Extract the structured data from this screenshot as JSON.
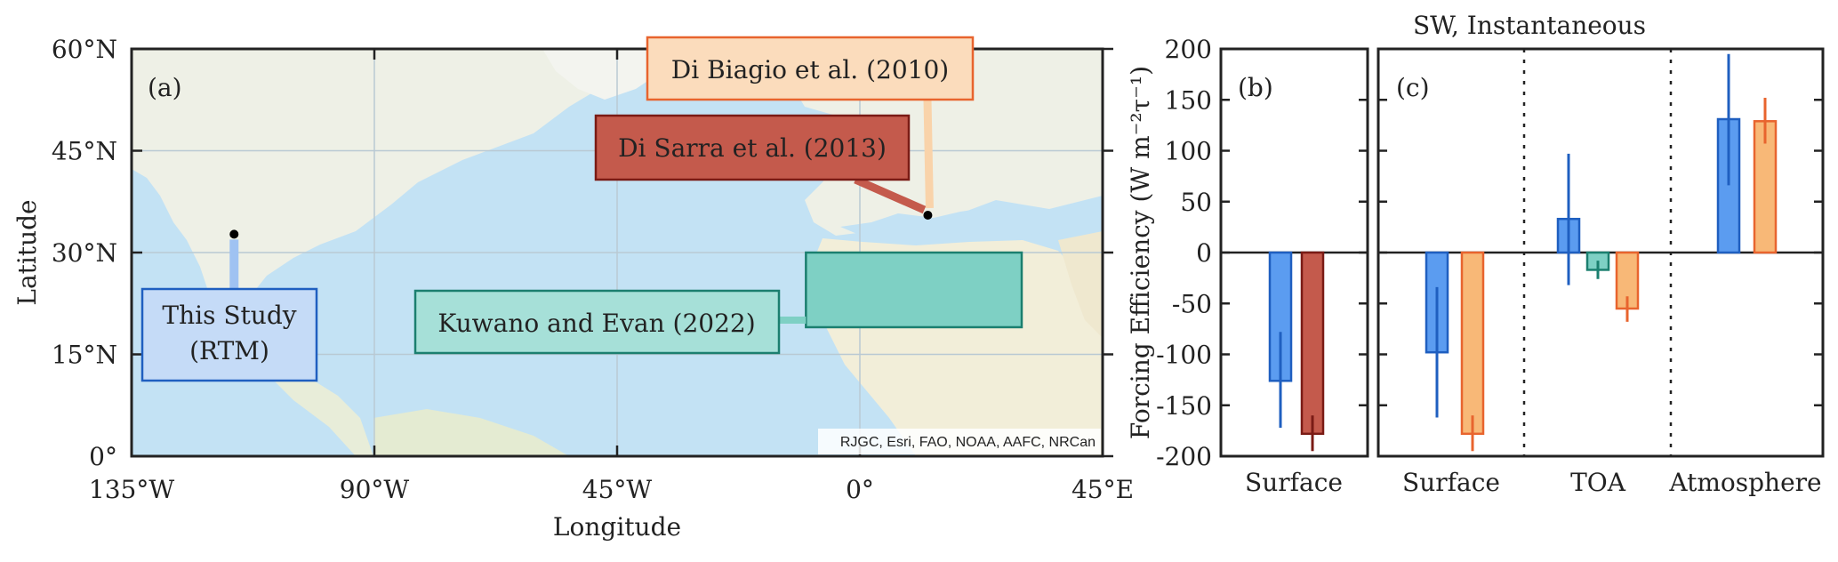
{
  "map": {
    "panel_label": "(a)",
    "xlabel": "Longitude",
    "ylabel": "Latitude",
    "lon_ticks": [
      {
        "lon": -135,
        "label": "135°W"
      },
      {
        "lon": -90,
        "label": "90°W"
      },
      {
        "lon": -45,
        "label": "45°W"
      },
      {
        "lon": 0,
        "label": "0°"
      },
      {
        "lon": 45,
        "label": "45°E"
      }
    ],
    "lat_ticks": [
      {
        "lat": 60,
        "label": "60°N"
      },
      {
        "lat": 45,
        "label": "45°N"
      },
      {
        "lat": 30,
        "label": "30°N"
      },
      {
        "lat": 15,
        "label": "15°N"
      },
      {
        "lat": 0,
        "label": "0°"
      }
    ],
    "attribution": "RJGC, Esri, FAO, NOAA, AAFC, NRCan",
    "sites": [
      {
        "name": "this_study",
        "lon": -116,
        "lat": 32.7
      },
      {
        "name": "mediterranean",
        "lon": 12.6,
        "lat": 35.5
      }
    ],
    "region": {
      "lon_min": -10,
      "lon_max": 30,
      "lat_min": 19,
      "lat_max": 30
    },
    "labels": {
      "this_study_line1": "This Study",
      "this_study_line2": "(RTM)",
      "kuwano": "Kuwano and Evan (2022)",
      "di_sarra": "Di Sarra et al. (2013)",
      "di_biagio": "Di Biagio et al. (2010)"
    }
  },
  "colors": {
    "this_study_fill": "#5b9cf0",
    "this_study_edge": "#1f5fc0",
    "kuwano_fill": "#7ed0c4",
    "kuwano_edge": "#1b7f6f",
    "di_sarra_fill": "#c45a4c",
    "di_sarra_edge": "#7a1b15",
    "di_biagio_fill": "#f8b877",
    "di_biagio_edge": "#e8642e"
  },
  "chart_data": [
    {
      "type": "bar",
      "panel_label": "(b)",
      "categories": [
        "Surface"
      ],
      "ylabel": "Forcing Efficiency (W m⁻²τ⁻¹)",
      "ylim": [
        -200,
        200
      ],
      "yticks": [
        -200,
        -150,
        -100,
        -50,
        0,
        50,
        100,
        150,
        200
      ],
      "series": [
        {
          "key": "this_study",
          "values": [
            -126
          ],
          "err_low": [
            -172
          ],
          "err_high": [
            -78
          ]
        },
        {
          "key": "di_sarra",
          "values": [
            -178
          ],
          "err_low": [
            -195
          ],
          "err_high": [
            -160
          ]
        }
      ]
    },
    {
      "type": "bar",
      "title": "SW, Instantaneous",
      "panel_label": "(c)",
      "categories": [
        "Surface",
        "TOA",
        "Atmosphere"
      ],
      "ylim": [
        -200,
        200
      ],
      "series": [
        {
          "key": "this_study",
          "values": [
            -98,
            33,
            131
          ],
          "err_low": [
            -162,
            -32,
            66
          ],
          "err_high": [
            -34,
            97,
            195
          ]
        },
        {
          "key": "kuwano",
          "values": [
            null,
            -17,
            null
          ],
          "err_low": [
            null,
            -26,
            null
          ],
          "err_high": [
            null,
            -8,
            null
          ]
        },
        {
          "key": "di_biagio",
          "values": [
            -178,
            -55,
            129
          ],
          "err_low": [
            -195,
            -68,
            107
          ],
          "err_high": [
            -160,
            -43,
            152
          ]
        }
      ]
    }
  ]
}
